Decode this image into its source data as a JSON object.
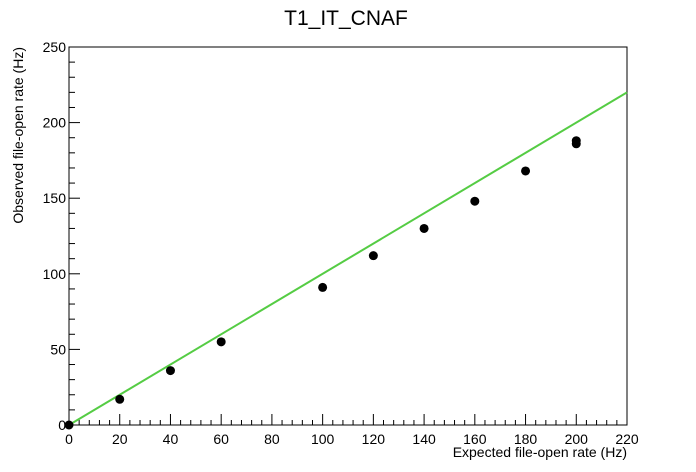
{
  "chart_data": {
    "type": "scatter",
    "title": "T1_IT_CNAF",
    "xlabel": "Expected file-open rate (Hz)",
    "ylabel": "Observed file-open rate (Hz)",
    "xlim": [
      0,
      220
    ],
    "ylim": [
      0,
      250
    ],
    "x_ticks": [
      0,
      20,
      40,
      60,
      80,
      100,
      120,
      140,
      160,
      180,
      200,
      220
    ],
    "y_ticks": [
      0,
      50,
      100,
      150,
      200,
      250
    ],
    "x_tick_labels": [
      "0",
      "20",
      "40",
      "60",
      "80",
      "100",
      "120",
      "140",
      "160",
      "180",
      "200",
      "220"
    ],
    "y_tick_labels": [
      "0",
      "50",
      "100",
      "150",
      "200",
      "250"
    ],
    "grid": false,
    "series": [
      {
        "type": "scatter",
        "color": "#000000",
        "x": [
          0,
          20,
          40,
          60,
          100,
          120,
          140,
          160,
          180,
          200,
          200
        ],
        "y": [
          0,
          17,
          36,
          55,
          91,
          112,
          130,
          148,
          168,
          186,
          188
        ]
      },
      {
        "type": "line",
        "color": "#55cc44",
        "x": [
          0,
          220
        ],
        "y": [
          0,
          220
        ]
      }
    ]
  }
}
